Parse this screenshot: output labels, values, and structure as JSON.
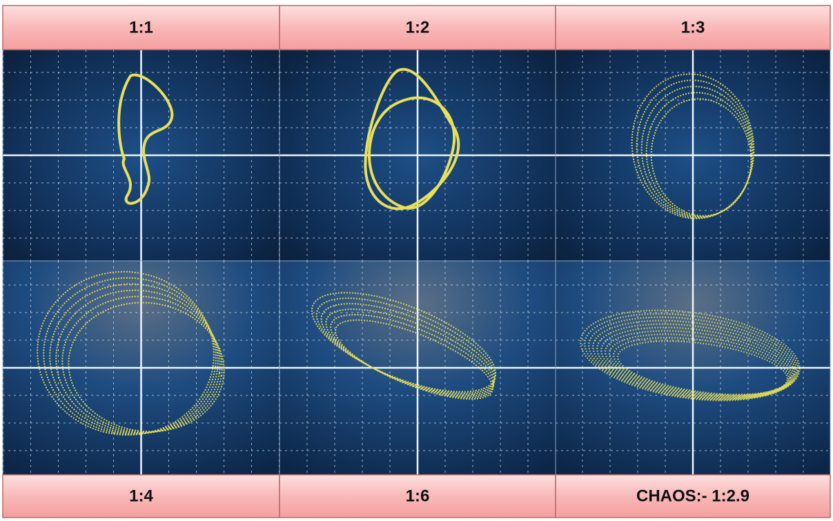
{
  "labels": {
    "top": [
      "1:1",
      "1:2",
      "1:3"
    ],
    "bottom": [
      "1:4",
      "1:6",
      "CHAOS:- 1:2.9"
    ]
  }
}
